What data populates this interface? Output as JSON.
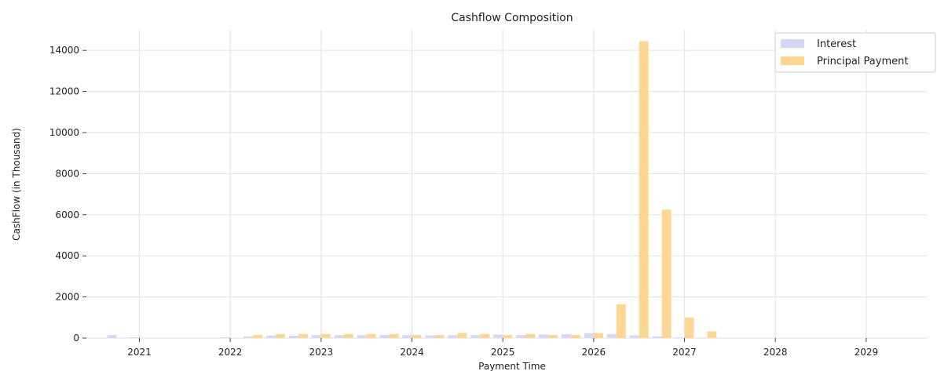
{
  "chart_data": {
    "type": "bar",
    "title": "Cashflow Composition",
    "xlabel": "Payment Time",
    "ylabel": "CashFlow (in Thousand)",
    "x_ticks": [
      "2021",
      "2022",
      "2023",
      "2024",
      "2025",
      "2026",
      "2027",
      "2028",
      "2029"
    ],
    "y_ticks": [
      0,
      2000,
      4000,
      6000,
      8000,
      10000,
      12000,
      14000
    ],
    "ylim": [
      0,
      15000
    ],
    "xlim": [
      "2020-06",
      "2029-09"
    ],
    "grid": true,
    "legend_position": "top-right",
    "payment_dates": [
      "2020-10",
      "2021-01",
      "2022-01",
      "2022-04",
      "2022-07",
      "2022-10",
      "2023-01",
      "2023-04",
      "2023-07",
      "2023-10",
      "2024-01",
      "2024-04",
      "2024-07",
      "2024-10",
      "2025-01",
      "2025-04",
      "2025-07",
      "2025-10",
      "2026-01",
      "2026-04",
      "2026-07",
      "2026-10",
      "2027-01",
      "2027-04"
    ],
    "series": [
      {
        "name": "Interest",
        "color": "#d6d6f5",
        "values": [
          150,
          40,
          40,
          80,
          120,
          120,
          150,
          140,
          140,
          150,
          150,
          130,
          140,
          150,
          170,
          150,
          170,
          190,
          240,
          200,
          130,
          80,
          30,
          10
        ]
      },
      {
        "name": "Principal Payment",
        "color": "#ffd58f",
        "values": [
          0,
          0,
          0,
          150,
          200,
          200,
          200,
          200,
          200,
          200,
          150,
          150,
          250,
          200,
          150,
          200,
          150,
          150,
          250,
          1650,
          14450,
          6250,
          1000,
          320
        ]
      }
    ]
  }
}
